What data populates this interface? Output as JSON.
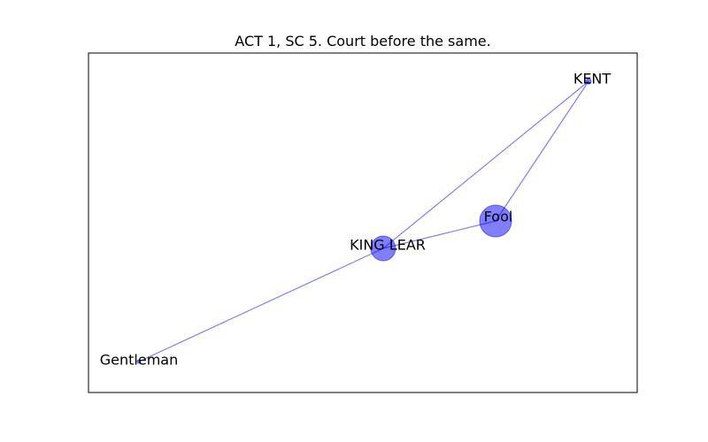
{
  "title": "ACT 1, SC 5. Court before the same.",
  "edge_color": "#0000ff",
  "node_color": "#0000ff",
  "nodes": [
    {
      "id": "KENT",
      "label": "KENT",
      "size": "small"
    },
    {
      "id": "Fool",
      "label": "Fool",
      "size": "large"
    },
    {
      "id": "KING LEAR",
      "label": "KING LEAR",
      "size": "medium"
    },
    {
      "id": "Gentleman",
      "label": "Gentleman",
      "size": "tiny"
    }
  ],
  "edges": [
    {
      "source": "KENT",
      "target": "KING LEAR"
    },
    {
      "source": "KENT",
      "target": "Fool"
    },
    {
      "source": "Fool",
      "target": "KING LEAR"
    },
    {
      "source": "KING LEAR",
      "target": "Gentleman"
    }
  ]
}
